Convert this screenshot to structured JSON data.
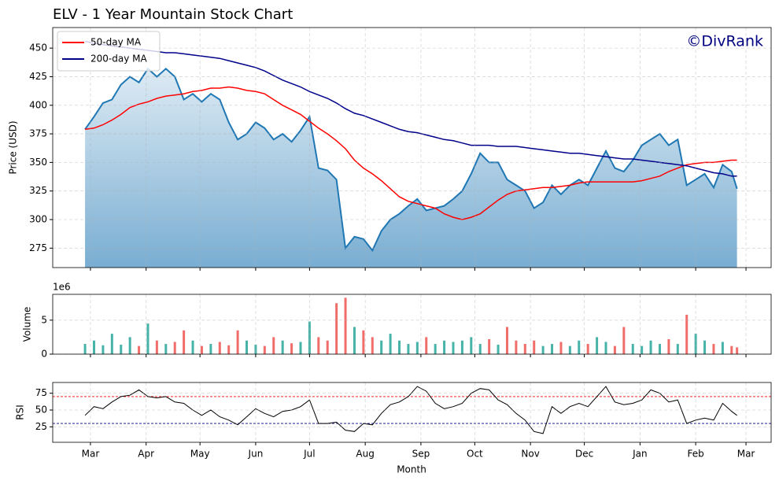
{
  "chart_data": {
    "type": "stock",
    "title": "ELV - 1 Year Mountain Stock Chart",
    "watermark": "©DivRank",
    "xlabel": "Month",
    "x": [
      -3,
      2,
      7,
      12,
      17,
      22,
      27,
      32,
      37,
      42,
      47,
      52,
      57,
      62,
      67,
      72,
      77,
      82,
      87,
      92,
      97,
      102,
      107,
      112,
      117,
      122,
      127,
      132,
      137,
      142,
      147,
      152,
      157,
      162,
      167,
      172,
      177,
      182,
      187,
      192,
      197,
      202,
      207,
      212,
      217,
      222,
      227,
      232,
      237,
      242,
      247,
      252,
      257,
      262,
      267,
      272,
      277,
      282,
      287,
      292,
      297,
      302,
      307,
      312,
      317,
      322,
      327,
      332,
      337,
      342,
      347,
      352,
      357,
      360
    ],
    "xlim": [
      -21,
      379
    ],
    "xticks": [
      {
        "value": 0,
        "label": "Mar"
      },
      {
        "value": 31,
        "label": "Apr"
      },
      {
        "value": 61,
        "label": "May"
      },
      {
        "value": 92,
        "label": "Jun"
      },
      {
        "value": 122,
        "label": "Jul"
      },
      {
        "value": 153,
        "label": "Aug"
      },
      {
        "value": 184,
        "label": "Sep"
      },
      {
        "value": 214,
        "label": "Oct"
      },
      {
        "value": 245,
        "label": "Nov"
      },
      {
        "value": 275,
        "label": "Dec"
      },
      {
        "value": 306,
        "label": "Jan"
      },
      {
        "value": 337,
        "label": "Feb"
      },
      {
        "value": 365,
        "label": "Mar"
      }
    ],
    "grid": true,
    "panels": [
      {
        "type": "mountain",
        "ylabel": "Price (USD)",
        "ylim": [
          258,
          468
        ],
        "yticks": [
          275,
          300,
          325,
          350,
          375,
          400,
          425,
          450
        ],
        "legend": "upper left",
        "series": [
          {
            "color": "#1f77b4",
            "values": [
              379,
              390,
              402,
              405,
              418,
              425,
              420,
              432,
              425,
              432,
              425,
              405,
              410,
              403,
              410,
              405,
              385,
              370,
              375,
              385,
              380,
              370,
              375,
              368,
              378,
              390,
              345,
              343,
              335,
              275,
              285,
              283,
              273,
              290,
              300,
              305,
              312,
              318,
              308,
              310,
              312,
              318,
              325,
              340,
              358,
              350,
              350,
              335,
              330,
              325,
              310,
              315,
              330,
              322,
              330,
              335,
              330,
              345,
              360,
              345,
              342,
              352,
              365,
              370,
              375,
              365,
              370,
              330,
              335,
              340,
              328,
              348,
              342,
              327
            ]
          },
          {
            "name": "50-day MA",
            "color": "#ff0000",
            "values": [
              379,
              380,
              383,
              387,
              392,
              398,
              401,
              403,
              406,
              408,
              409,
              410,
              412,
              413,
              415,
              415,
              416,
              415,
              413,
              412,
              410,
              405,
              400,
              396,
              392,
              386,
              380,
              375,
              369,
              362,
              352,
              345,
              340,
              334,
              327,
              320,
              316,
              314,
              312,
              310,
              305,
              302,
              300,
              302,
              305,
              311,
              317,
              322,
              325,
              326,
              327,
              328,
              328,
              329,
              330,
              332,
              333,
              333,
              333,
              333,
              333,
              333,
              334,
              336,
              338,
              342,
              345,
              348,
              349,
              350,
              350,
              351,
              352,
              352
            ]
          },
          {
            "name": "200-day MA",
            "color": "#00008b",
            "values": [
              456,
              454,
              453,
              452,
              451,
              450,
              449,
              448,
              447,
              446,
              446,
              445,
              444,
              443,
              442,
              441,
              439,
              437,
              435,
              433,
              430,
              426,
              422,
              419,
              416,
              412,
              409,
              406,
              402,
              397,
              393,
              391,
              388,
              385,
              382,
              379,
              377,
              376,
              374,
              372,
              370,
              369,
              367,
              365,
              365,
              365,
              364,
              364,
              364,
              363,
              362,
              361,
              360,
              359,
              358,
              358,
              357,
              356,
              355,
              354,
              353,
              353,
              352,
              351,
              350,
              349,
              348,
              347,
              345,
              343,
              341,
              340,
              338,
              338
            ]
          }
        ]
      },
      {
        "type": "volume",
        "ylabel": "Volume",
        "offset_label": "1e6",
        "ylim": [
          0,
          8.8
        ],
        "yticks": [
          0,
          5
        ],
        "up_color": "#26a69a",
        "down_color": "#ef5350",
        "values": [
          1.5,
          2.0,
          1.3,
          3.0,
          1.4,
          2.5,
          1.2,
          4.5,
          2.0,
          1.5,
          1.8,
          3.5,
          2.0,
          1.2,
          1.5,
          1.8,
          1.3,
          3.5,
          2.0,
          1.4,
          1.2,
          2.5,
          2.0,
          1.6,
          1.8,
          4.8,
          2.5,
          2.0,
          7.5,
          8.3,
          4.0,
          3.5,
          2.5,
          2.0,
          3.0,
          2.0,
          1.5,
          1.8,
          2.5,
          1.5,
          2.0,
          1.8,
          2.0,
          2.5,
          1.5,
          2.2,
          1.4,
          4.0,
          2.0,
          1.5,
          2.0,
          1.2,
          1.5,
          1.8,
          1.2,
          2.0,
          1.5,
          2.5,
          1.8,
          1.2,
          4.0,
          1.5,
          1.2,
          2.0,
          1.5,
          2.2,
          1.5,
          5.8,
          3.0,
          2.0,
          1.5,
          1.8,
          1.2,
          1.0
        ]
      },
      {
        "type": "rsi",
        "ylabel": "RSI",
        "ylim": [
          2,
          91
        ],
        "yticks": [
          25,
          50,
          75
        ],
        "color": "#000000",
        "hlines": [
          {
            "value": 70,
            "color": "#ff0000"
          },
          {
            "value": 30,
            "color": "#00008b"
          }
        ],
        "values": [
          42,
          55,
          52,
          62,
          70,
          72,
          80,
          70,
          68,
          70,
          62,
          60,
          50,
          42,
          50,
          40,
          35,
          28,
          40,
          52,
          45,
          40,
          48,
          50,
          55,
          65,
          30,
          30,
          32,
          20,
          18,
          30,
          28,
          45,
          58,
          62,
          70,
          85,
          78,
          60,
          52,
          55,
          60,
          75,
          82,
          80,
          65,
          58,
          45,
          35,
          18,
          15,
          55,
          45,
          55,
          60,
          55,
          70,
          85,
          62,
          58,
          60,
          65,
          80,
          75,
          62,
          65,
          30,
          35,
          38,
          35,
          60,
          48,
          42
        ]
      }
    ]
  }
}
